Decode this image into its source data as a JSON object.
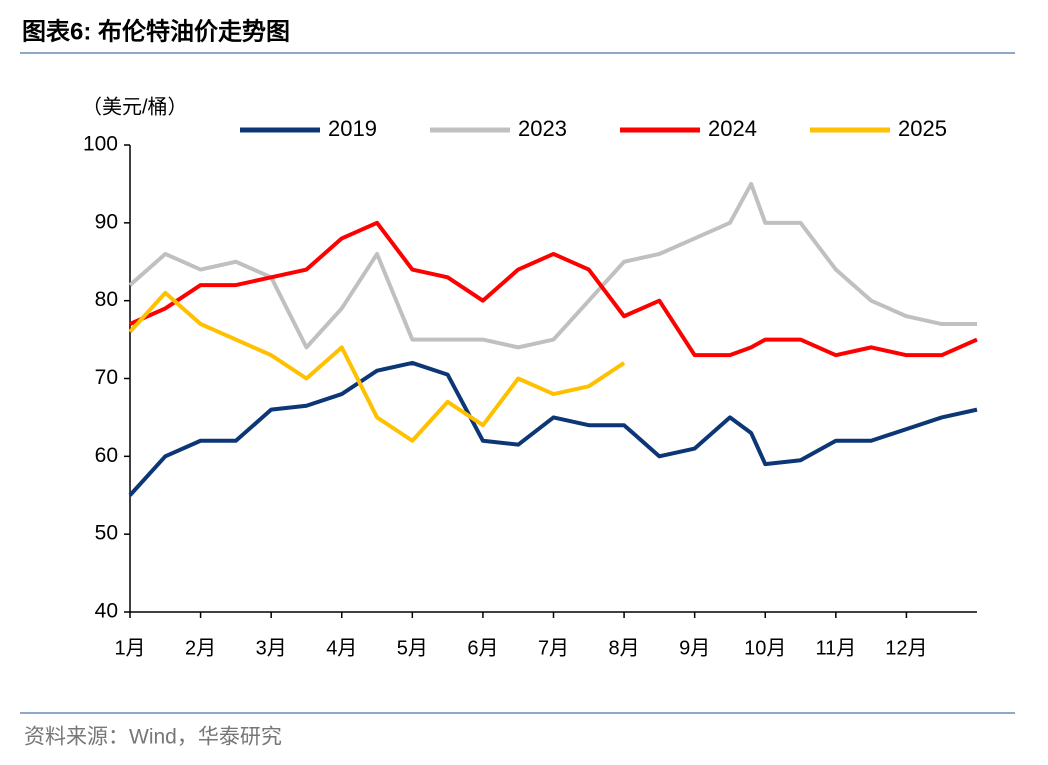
{
  "chart_data": {
    "type": "line",
    "title": "图表6:  布伦特油价走势图",
    "y_label": "（美元/桶）",
    "source": "资料来源：Wind，华泰研究",
    "x": [
      1,
      1.5,
      2,
      2.5,
      3,
      3.5,
      4,
      4.5,
      5,
      5.5,
      6,
      6.5,
      7,
      7.5,
      8,
      8.5,
      9,
      9.5,
      9.8,
      10,
      10.5,
      11,
      11.5,
      12,
      12.5,
      13
    ],
    "xlim": [
      1,
      13
    ],
    "xticks": [
      {
        "value": 1,
        "label": "1月"
      },
      {
        "value": 2,
        "label": "2月"
      },
      {
        "value": 3,
        "label": "3月"
      },
      {
        "value": 4,
        "label": "4月"
      },
      {
        "value": 5,
        "label": "5月"
      },
      {
        "value": 6,
        "label": "6月"
      },
      {
        "value": 7,
        "label": "7月"
      },
      {
        "value": 8,
        "label": "8月"
      },
      {
        "value": 9,
        "label": "9月"
      },
      {
        "value": 10,
        "label": "10月"
      },
      {
        "value": 11,
        "label": "11月"
      },
      {
        "value": 12,
        "label": "12月"
      }
    ],
    "ylim": [
      40,
      100
    ],
    "yticks": [
      40,
      50,
      60,
      70,
      80,
      90,
      100
    ],
    "legend": "top",
    "series": [
      {
        "name": "2019",
        "color": "#0c3675",
        "values": [
          55,
          60,
          62,
          62,
          66,
          66.5,
          68,
          71,
          72,
          70.5,
          62,
          61.5,
          65,
          64,
          64,
          60,
          61,
          65,
          63,
          59,
          59.5,
          62,
          62,
          63.5,
          65,
          66
        ]
      },
      {
        "name": "2023",
        "color": "#c0c0c0",
        "values": [
          82,
          86,
          84,
          85,
          83,
          74,
          79,
          86,
          75,
          75,
          75,
          74,
          75,
          80,
          85,
          86,
          88,
          90,
          95,
          90,
          90,
          84,
          80,
          78,
          77,
          77
        ]
      },
      {
        "name": "2024",
        "color": "#ff0000",
        "values": [
          77,
          79,
          82,
          82,
          83,
          84,
          88,
          90,
          84,
          83,
          80,
          84,
          86,
          84,
          78,
          80,
          73,
          73,
          74,
          75,
          75,
          73,
          74,
          73,
          73,
          75
        ]
      },
      {
        "name": "2025",
        "color": "#ffc000",
        "values": [
          76,
          81,
          77,
          75,
          73,
          70,
          74,
          65,
          62,
          67,
          64,
          70,
          68,
          69,
          72,
          null,
          null,
          null,
          null,
          null,
          null,
          null,
          null,
          null,
          null,
          null
        ]
      }
    ]
  }
}
